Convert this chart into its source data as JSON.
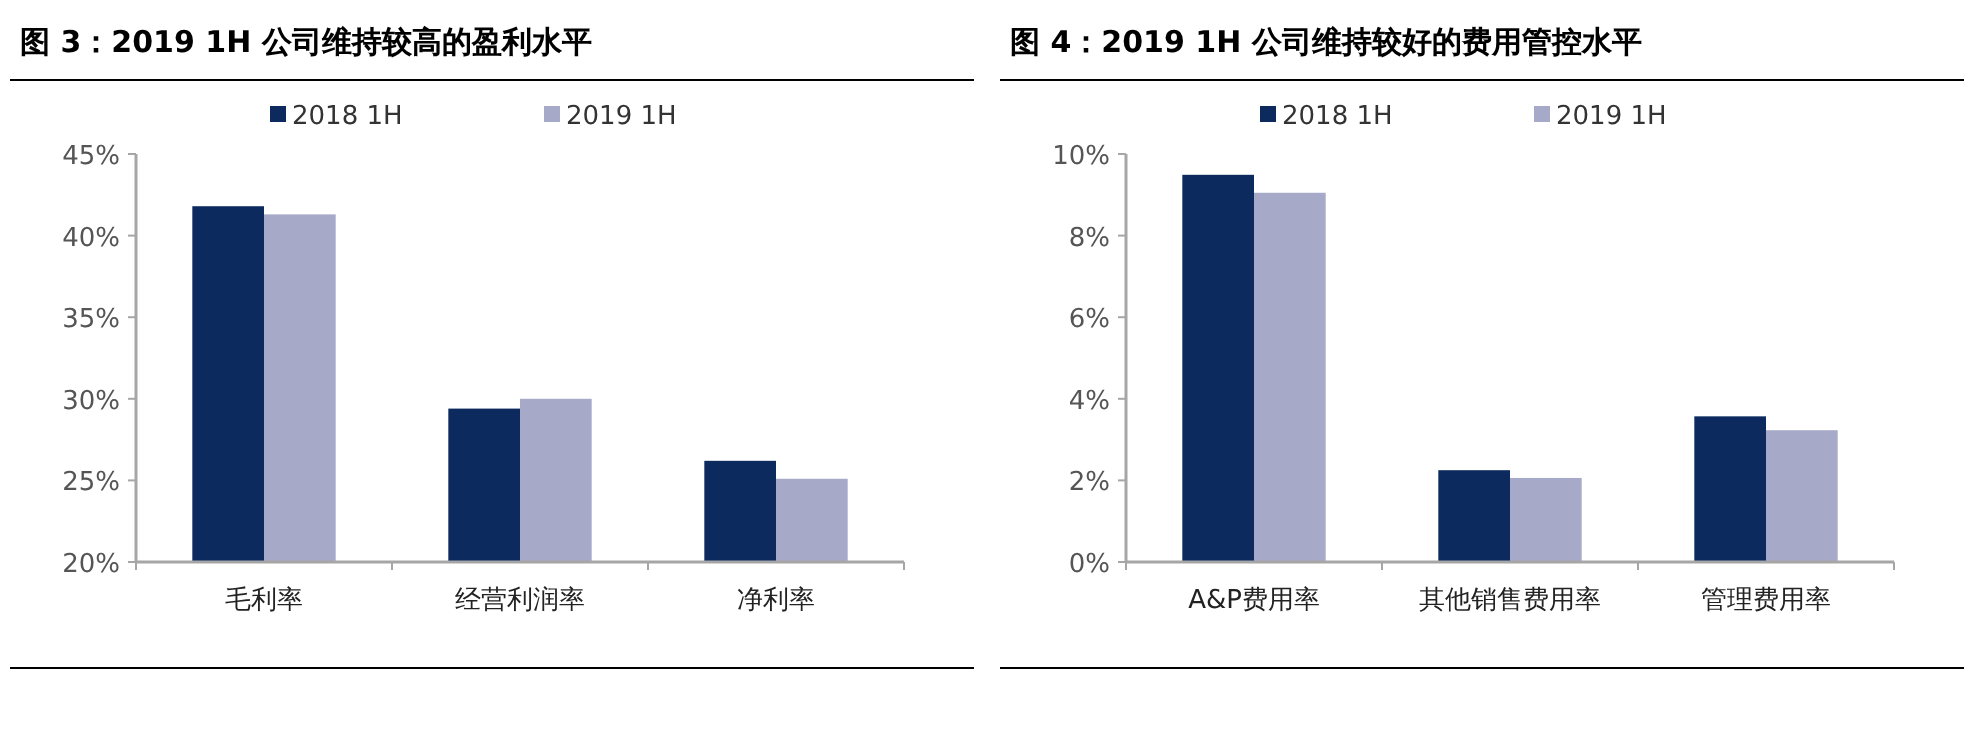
{
  "chart_data": [
    {
      "type": "bar",
      "title": "图 3：2019 1H 公司维持较高的盈利水平",
      "categories": [
        "毛利率",
        "经营利润率",
        "净利率"
      ],
      "series": [
        {
          "name": "2018 1H",
          "color": "#0c2a5e",
          "values": [
            41.8,
            29.4,
            26.2
          ]
        },
        {
          "name": "2019 1H",
          "color": "#a7a9c9",
          "values": [
            41.3,
            30.0,
            25.1
          ]
        }
      ],
      "ylim": [
        20,
        45
      ],
      "yticks": [
        {
          "value": 20,
          "label": "20%"
        },
        {
          "value": 25,
          "label": "25%"
        },
        {
          "value": 30,
          "label": "30%"
        },
        {
          "value": 35,
          "label": "35%"
        },
        {
          "value": 40,
          "label": "40%"
        },
        {
          "value": 45,
          "label": "45%"
        }
      ],
      "grid": false,
      "legend": "top"
    },
    {
      "type": "bar",
      "title": "图 4：2019 1H 公司维持较好的费用管控水平",
      "categories": [
        "A&P费用率",
        "其他销售费用率",
        "管理费用率"
      ],
      "series": [
        {
          "name": "2018 1H",
          "color": "#0c2a5e",
          "values": [
            9.49,
            2.25,
            3.57
          ]
        },
        {
          "name": "2019 1H",
          "color": "#a7a9c9",
          "values": [
            9.05,
            2.06,
            3.23
          ]
        }
      ],
      "ylim": [
        0,
        10
      ],
      "yticks": [
        {
          "value": 0,
          "label": "0%"
        },
        {
          "value": 2,
          "label": "2%"
        },
        {
          "value": 4,
          "label": "4%"
        },
        {
          "value": 6,
          "label": "6%"
        },
        {
          "value": 8,
          "label": "8%"
        },
        {
          "value": 10,
          "label": "10%"
        }
      ],
      "grid": false,
      "legend": "top"
    }
  ]
}
